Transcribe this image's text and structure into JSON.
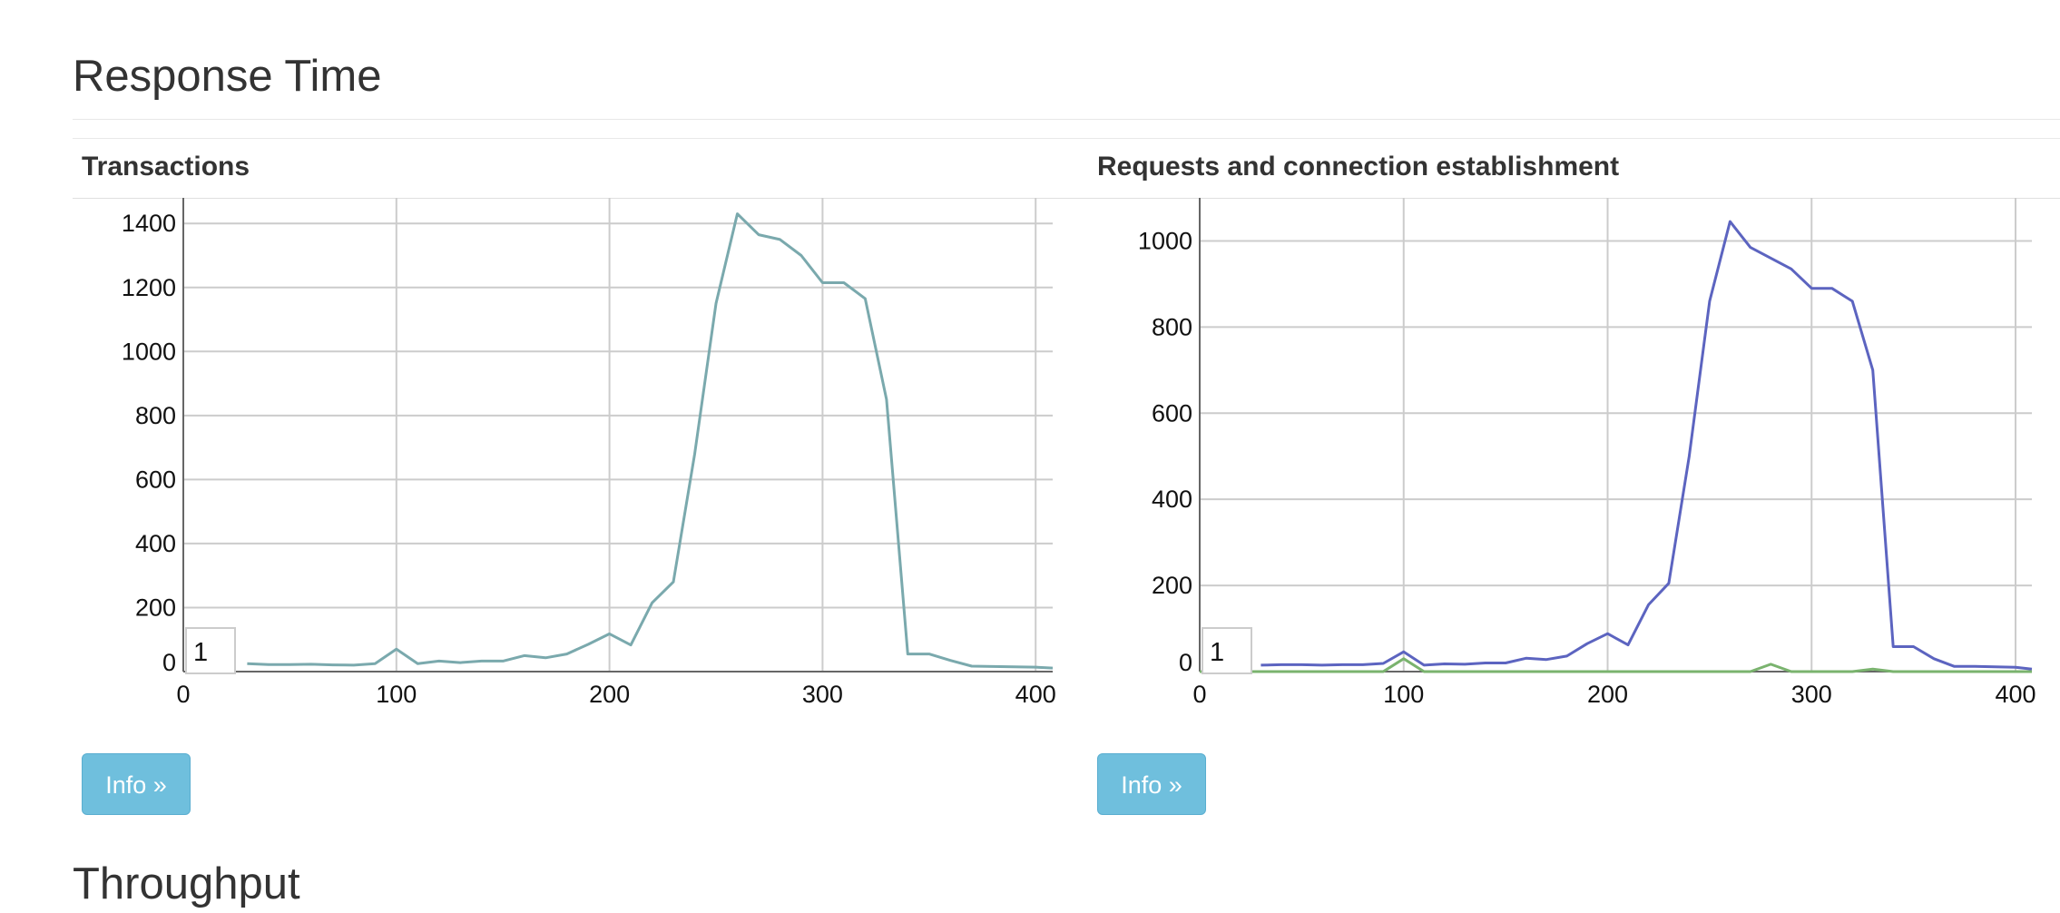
{
  "page": {
    "heading": "Response Time",
    "next_heading": "Throughput"
  },
  "panels": [
    {
      "title": "Transactions",
      "info_label": "Info »",
      "zoom_value": "1"
    },
    {
      "title": "Requests and connection establishment",
      "info_label": "Info »",
      "zoom_value": "1"
    }
  ],
  "chart_data": [
    {
      "type": "line",
      "title": "Transactions",
      "xlim": [
        0,
        408
      ],
      "ylim": [
        0,
        1480
      ],
      "x_ticks": [
        0,
        100,
        200,
        300,
        400
      ],
      "y_ticks": [
        0,
        200,
        400,
        600,
        800,
        1000,
        1200,
        1400
      ],
      "grid": true,
      "series": [
        {
          "color": "#7aa9ad",
          "points": [
            [
              30,
              25
            ],
            [
              40,
              22
            ],
            [
              50,
              22
            ],
            [
              60,
              23
            ],
            [
              70,
              21
            ],
            [
              80,
              20
            ],
            [
              90,
              25
            ],
            [
              100,
              70
            ],
            [
              110,
              25
            ],
            [
              120,
              33
            ],
            [
              130,
              28
            ],
            [
              140,
              33
            ],
            [
              150,
              33
            ],
            [
              160,
              50
            ],
            [
              170,
              43
            ],
            [
              180,
              55
            ],
            [
              190,
              85
            ],
            [
              200,
              118
            ],
            [
              210,
              83
            ],
            [
              220,
              215
            ],
            [
              230,
              280
            ],
            [
              240,
              680
            ],
            [
              250,
              1150
            ],
            [
              260,
              1430
            ],
            [
              270,
              1365
            ],
            [
              280,
              1350
            ],
            [
              290,
              1300
            ],
            [
              300,
              1215
            ],
            [
              310,
              1215
            ],
            [
              320,
              1165
            ],
            [
              330,
              850
            ],
            [
              340,
              55
            ],
            [
              350,
              55
            ],
            [
              360,
              35
            ],
            [
              370,
              17
            ],
            [
              380,
              16
            ],
            [
              390,
              15
            ],
            [
              400,
              14
            ],
            [
              408,
              11
            ]
          ]
        }
      ]
    },
    {
      "type": "line",
      "title": "Requests and connection establishment",
      "xlim": [
        0,
        408
      ],
      "ylim": [
        0,
        1100
      ],
      "x_ticks": [
        0,
        100,
        200,
        300,
        400
      ],
      "y_ticks": [
        0,
        200,
        400,
        600,
        800,
        1000
      ],
      "grid": true,
      "series": [
        {
          "color": "#5c64c0",
          "points": [
            [
              30,
              15
            ],
            [
              40,
              16
            ],
            [
              50,
              16
            ],
            [
              60,
              15
            ],
            [
              70,
              16
            ],
            [
              80,
              16
            ],
            [
              90,
              19
            ],
            [
              100,
              46
            ],
            [
              110,
              15
            ],
            [
              120,
              18
            ],
            [
              130,
              17
            ],
            [
              140,
              20
            ],
            [
              150,
              20
            ],
            [
              160,
              31
            ],
            [
              170,
              28
            ],
            [
              180,
              36
            ],
            [
              190,
              65
            ],
            [
              200,
              88
            ],
            [
              210,
              62
            ],
            [
              220,
              155
            ],
            [
              230,
              205
            ],
            [
              240,
              500
            ],
            [
              250,
              860
            ],
            [
              260,
              1045
            ],
            [
              270,
              985
            ],
            [
              280,
              960
            ],
            [
              290,
              935
            ],
            [
              300,
              890
            ],
            [
              310,
              890
            ],
            [
              320,
              860
            ],
            [
              330,
              700
            ],
            [
              340,
              58
            ],
            [
              350,
              58
            ],
            [
              360,
              30
            ],
            [
              370,
              12
            ],
            [
              380,
              12
            ],
            [
              390,
              11
            ],
            [
              400,
              10
            ],
            [
              408,
              6
            ]
          ]
        },
        {
          "color": "#7ab36e",
          "points": [
            [
              0,
              0
            ],
            [
              90,
              0
            ],
            [
              100,
              30
            ],
            [
              110,
              0
            ],
            [
              270,
              0
            ],
            [
              280,
              17
            ],
            [
              290,
              0
            ],
            [
              320,
              0
            ],
            [
              330,
              6
            ],
            [
              340,
              0
            ],
            [
              408,
              0
            ]
          ]
        }
      ]
    }
  ]
}
